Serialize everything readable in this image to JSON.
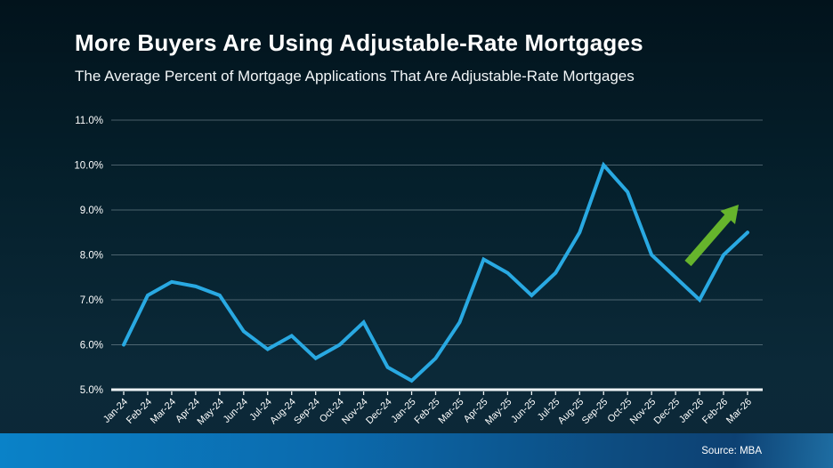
{
  "header": {
    "title": "More Buyers Are Using Adjustable-Rate Mortgages",
    "subtitle": "The Average Percent of Mortgage Applications That Are Adjustable-Rate Mortgages"
  },
  "chart_data": {
    "type": "line",
    "title": "The Average Percent of Mortgage Applications That Are Adjustable-Rate Mortgages",
    "categories": [
      "Jan-24",
      "Feb-24",
      "Mar-24",
      "Apr-24",
      "May-24",
      "Jun-24",
      "Jul-24",
      "Aug-24",
      "Sep-24",
      "Oct-24",
      "Nov-24",
      "Dec-24",
      "Jan-25",
      "Feb-25",
      "Mar-25",
      "Apr-25",
      "May-25",
      "Jun-25",
      "Jul-25",
      "Aug-25",
      "Sep-25",
      "Oct-25",
      "Nov-25",
      "Dec-25",
      "Jan-26",
      "Feb-26",
      "Mar-26"
    ],
    "values": [
      6.0,
      7.1,
      7.4,
      7.3,
      7.1,
      6.3,
      5.9,
      6.2,
      5.7,
      6.0,
      6.5,
      5.5,
      5.2,
      5.7,
      6.5,
      7.9,
      7.6,
      7.1,
      7.6,
      8.5,
      10.0,
      9.4,
      8.0,
      7.5,
      7.0,
      8.0,
      8.5
    ],
    "xlabel": "",
    "ylabel": "",
    "ylim": [
      5.0,
      11.0
    ],
    "ytick_values": [
      5,
      6,
      7,
      8,
      9,
      10,
      11
    ],
    "ytick_labels": [
      "5.0%",
      "6.0%",
      "7.0%",
      "8.0%",
      "9.0%",
      "10.0%",
      "11.0%"
    ],
    "grid": true,
    "legend": "none",
    "line_color": "#29a9e2",
    "grid_color": "rgba(190,205,212,0.38)",
    "axis_color": "#eef3f5",
    "label_color": "#ffffff",
    "annotation": {
      "type": "upward-trend-arrow",
      "color": "#66b42c"
    }
  },
  "footer": {
    "source_label": "Source: MBA"
  }
}
